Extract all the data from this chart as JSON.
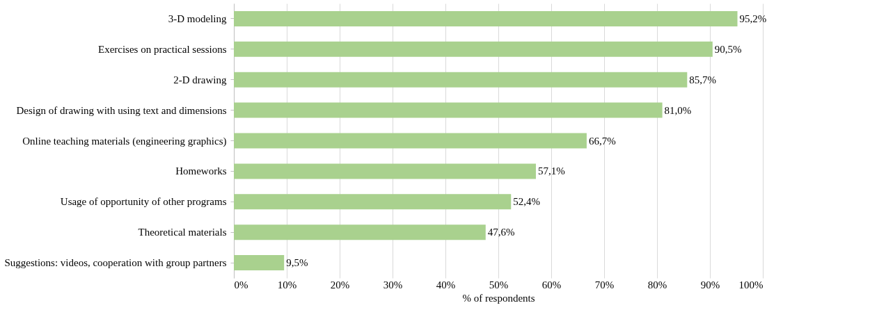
{
  "chart_data": {
    "type": "bar",
    "orientation": "horizontal",
    "xlabel": "% of respondents",
    "categories": [
      "3-D modeling",
      "Exercises on practical sessions",
      "2-D drawing",
      "Design of drawing with using text and dimensions",
      "Online teaching materials (engineering graphics)",
      "Homeworks",
      "Usage of opportunity of other programs",
      "Theoretical materials",
      "Suggestions: videos, cooperation with group partners"
    ],
    "values": [
      95.2,
      90.5,
      85.7,
      81.0,
      66.7,
      57.1,
      52.4,
      47.6,
      9.5
    ],
    "value_labels": [
      "95,2%",
      "90,5%",
      "85,7%",
      "81,0%",
      "66,7%",
      "57,1%",
      "52,4%",
      "47,6%",
      "9,5%"
    ],
    "color": "#a9d18e",
    "xlim": [
      0,
      100
    ],
    "xticks": [
      {
        "value": 0,
        "label": "0%"
      },
      {
        "value": 10,
        "label": "10%"
      },
      {
        "value": 20,
        "label": "20%"
      },
      {
        "value": 30,
        "label": "30%"
      },
      {
        "value": 40,
        "label": "40%"
      },
      {
        "value": 50,
        "label": "50%"
      },
      {
        "value": 60,
        "label": "60%"
      },
      {
        "value": 70,
        "label": "70%"
      },
      {
        "value": 80,
        "label": "80%"
      },
      {
        "value": 90,
        "label": "90%"
      },
      {
        "value": 100,
        "label": "100%"
      }
    ],
    "grid": "x"
  }
}
